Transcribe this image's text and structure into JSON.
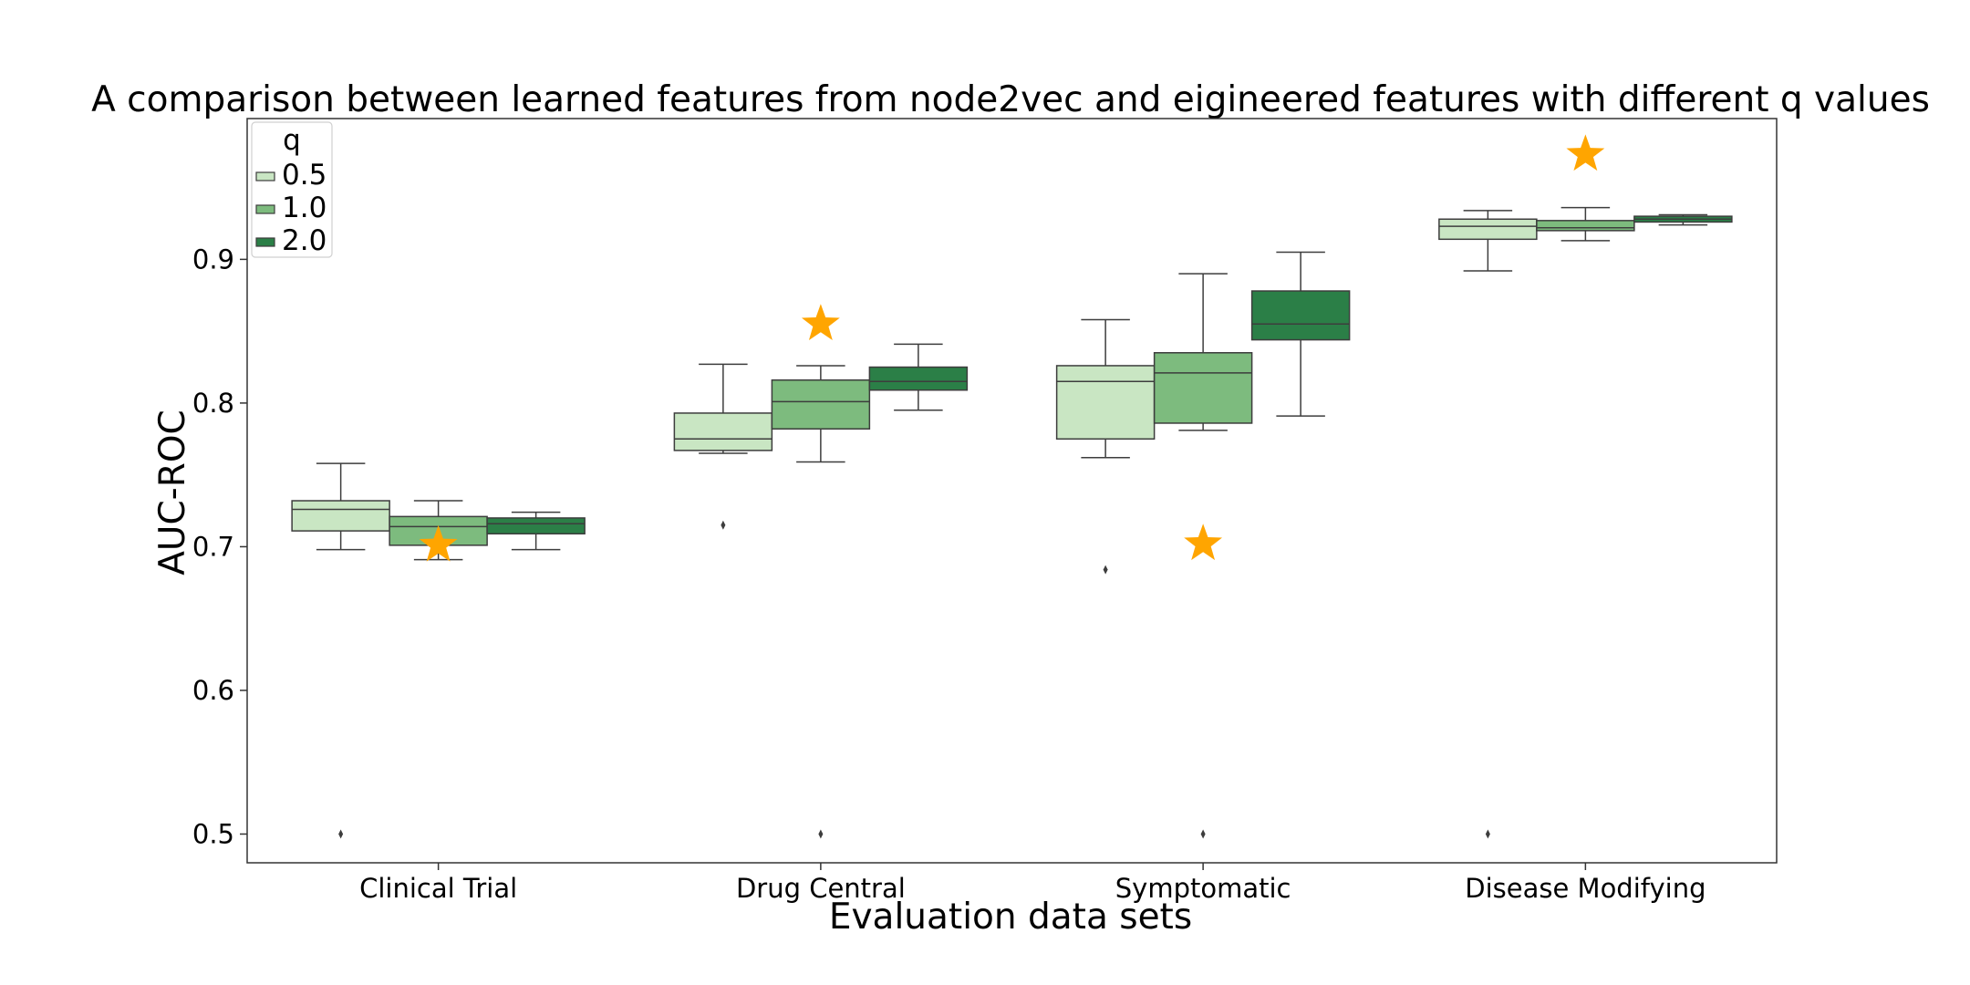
{
  "chart_data": {
    "type": "box",
    "title": "A comparison between learned features from node2vec and eigineered features with different q values",
    "xlabel": "Evaluation data sets",
    "ylabel": "AUC-ROC",
    "ylim": [
      0.48,
      0.998
    ],
    "yticks": [
      "0.5",
      "0.6",
      "0.7",
      "0.8",
      "0.9"
    ],
    "categories": [
      "Clinical Trial",
      "Drug Central",
      "Symptomatic",
      "Disease Modifying"
    ],
    "legend": {
      "title": "q",
      "position": "top-left"
    },
    "series": [
      {
        "name": "0.5",
        "color": "#c9e6c3",
        "boxes": [
          {
            "whislo": 0.698,
            "q1": 0.711,
            "med": 0.726,
            "q3": 0.732,
            "whishi": 0.758,
            "fliers": [
              0.5
            ]
          },
          {
            "whislo": 0.765,
            "q1": 0.767,
            "med": 0.775,
            "q3": 0.793,
            "whishi": 0.827,
            "fliers": [
              0.715
            ]
          },
          {
            "whislo": 0.762,
            "q1": 0.775,
            "med": 0.815,
            "q3": 0.826,
            "whishi": 0.858,
            "fliers": [
              0.684
            ]
          },
          {
            "whislo": 0.892,
            "q1": 0.914,
            "med": 0.923,
            "q3": 0.928,
            "whishi": 0.934,
            "fliers": [
              0.5
            ]
          }
        ]
      },
      {
        "name": "1.0",
        "color": "#7dbb7e",
        "boxes": [
          {
            "whislo": 0.691,
            "q1": 0.701,
            "med": 0.714,
            "q3": 0.721,
            "whishi": 0.732,
            "fliers": []
          },
          {
            "whislo": 0.759,
            "q1": 0.782,
            "med": 0.801,
            "q3": 0.816,
            "whishi": 0.826,
            "fliers": [
              0.5
            ]
          },
          {
            "whislo": 0.781,
            "q1": 0.786,
            "med": 0.821,
            "q3": 0.835,
            "whishi": 0.89,
            "fliers": [
              0.5
            ]
          },
          {
            "whislo": 0.913,
            "q1": 0.92,
            "med": 0.922,
            "q3": 0.927,
            "whishi": 0.936,
            "fliers": []
          }
        ]
      },
      {
        "name": "2.0",
        "color": "#2b7f47",
        "boxes": [
          {
            "whislo": 0.698,
            "q1": 0.709,
            "med": 0.716,
            "q3": 0.72,
            "whishi": 0.724,
            "fliers": []
          },
          {
            "whislo": 0.795,
            "q1": 0.809,
            "med": 0.815,
            "q3": 0.825,
            "whishi": 0.841,
            "fliers": []
          },
          {
            "whislo": 0.791,
            "q1": 0.844,
            "med": 0.855,
            "q3": 0.878,
            "whishi": 0.905,
            "fliers": []
          },
          {
            "whislo": 0.924,
            "q1": 0.926,
            "med": 0.928,
            "q3": 0.93,
            "whishi": 0.931,
            "fliers": []
          }
        ]
      }
    ],
    "engineered_features": {
      "marker": "star",
      "color": "#ffa500",
      "values": [
        0.701,
        0.855,
        0.702,
        0.973
      ]
    }
  }
}
